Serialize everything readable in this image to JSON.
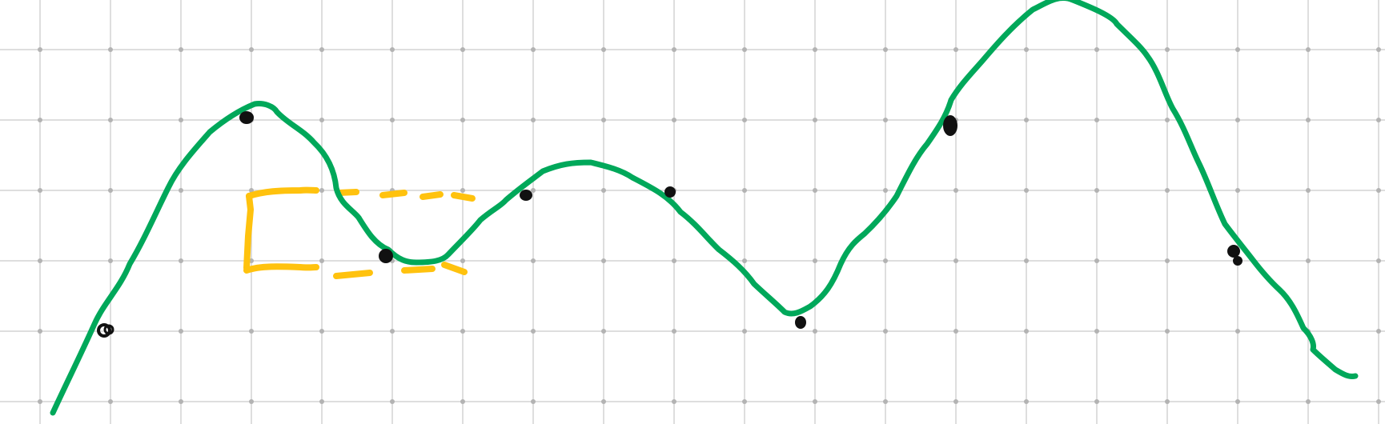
{
  "canvas": {
    "background": "#ffffff"
  },
  "colors": {
    "grid": "#d4d4d4",
    "grid_dot": "#b3b3b3",
    "curve": "#00a85a",
    "yellow": "#ffc20e",
    "ink": "#111111"
  },
  "elements": {
    "grid": "grid-lines",
    "curve": "freehand-green-curve",
    "yellow_sketch": "yellow-bracket-sketch",
    "points": "black-point-markers"
  }
}
